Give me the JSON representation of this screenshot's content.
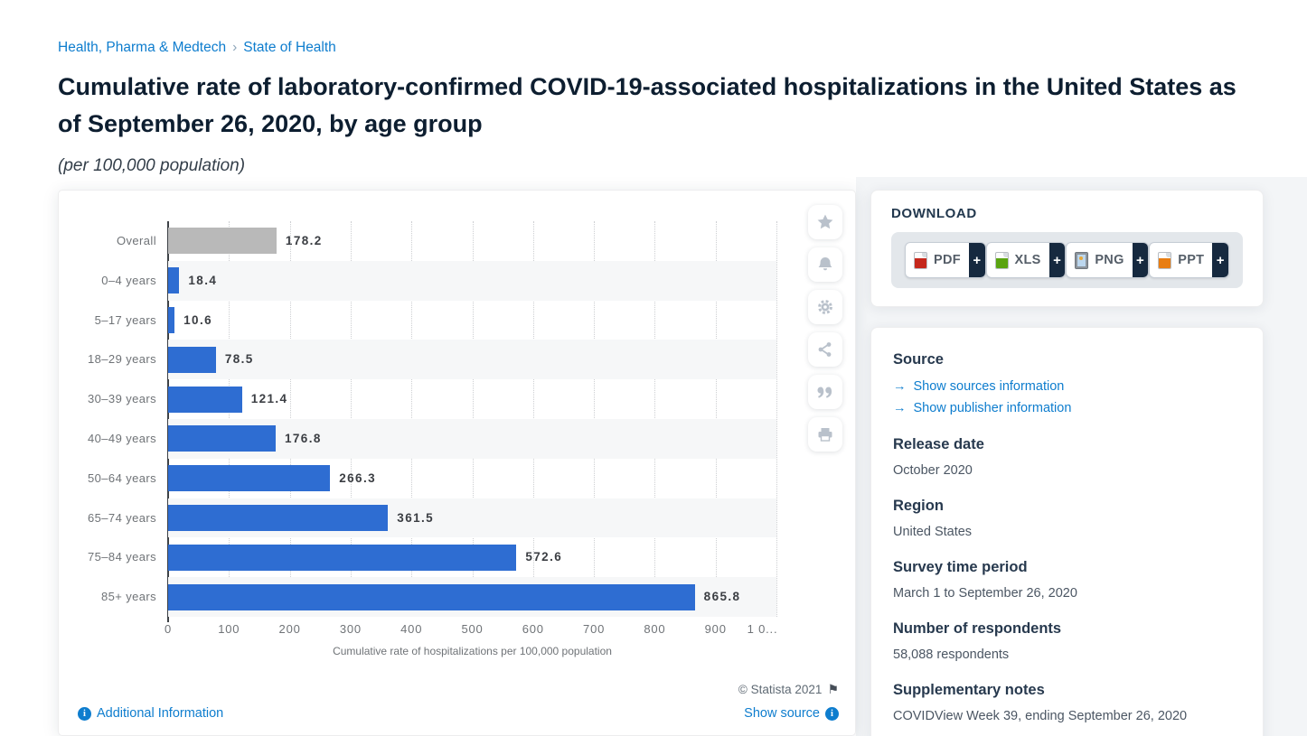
{
  "breadcrumb": {
    "items": [
      "Health, Pharma & Medtech",
      "State of Health"
    ],
    "separator": "›"
  },
  "page": {
    "title": "Cumulative rate of laboratory-confirmed COVID-19-associated hospitalizations in the United States as of September 26, 2020, by age group",
    "subtitle": "(per 100,000 population)"
  },
  "chart_data": {
    "type": "bar",
    "orientation": "horizontal",
    "categories": [
      "Overall",
      "0–4 years",
      "5–17 years",
      "18–29 years",
      "30–39 years",
      "40–49 years",
      "50–64 years",
      "65–74 years",
      "75–84 years",
      "85+ years"
    ],
    "values": [
      178.2,
      18.4,
      10.6,
      78.5,
      121.4,
      176.8,
      266.3,
      361.5,
      572.6,
      865.8
    ],
    "title": "Cumulative rate of laboratory-confirmed COVID-19-associated hospitalizations in the United States as of September 26, 2020, by age group",
    "xlabel": "Cumulative rate of hospitalizations per 100,000 population",
    "ylabel": "",
    "xlim": [
      0,
      1000
    ],
    "grid": "vertical-dotted",
    "bar_color_default": "#2e6dd2",
    "bar_color_overall": "#b9b9b9",
    "ticks": [
      {
        "label": "0",
        "value": 0
      },
      {
        "label": "100",
        "value": 100
      },
      {
        "label": "200",
        "value": 200
      },
      {
        "label": "300",
        "value": 300
      },
      {
        "label": "400",
        "value": 400
      },
      {
        "label": "500",
        "value": 500
      },
      {
        "label": "600",
        "value": 600
      },
      {
        "label": "700",
        "value": 700
      },
      {
        "label": "800",
        "value": 800
      },
      {
        "label": "900",
        "value": 900
      },
      {
        "label": "1 0...",
        "value": 977
      }
    ],
    "gridlines": [
      100,
      200,
      300,
      400,
      500,
      600,
      700,
      800,
      900,
      1000
    ]
  },
  "chart_footer": {
    "copyright": "© Statista 2021",
    "additional_info_label": "Additional Information",
    "show_source_label": "Show source",
    "info_icon": "i",
    "flag_icon": "⚑"
  },
  "action_icons": [
    "star-icon",
    "bell-icon",
    "gear-icon",
    "share-icon",
    "quote-icon",
    "print-icon"
  ],
  "download": {
    "heading": "DOWNLOAD",
    "plus_label": "+",
    "buttons": [
      {
        "label": "PDF",
        "type": "pdf"
      },
      {
        "label": "XLS",
        "type": "xls"
      },
      {
        "label": "PNG",
        "type": "png"
      },
      {
        "label": "PPT",
        "type": "ppt"
      }
    ]
  },
  "details": {
    "source_heading": "Source",
    "link_arrow": "→",
    "source_links": [
      "Show sources information",
      "Show publisher information"
    ],
    "sections": [
      {
        "heading": "Release date",
        "text": "October 2020"
      },
      {
        "heading": "Region",
        "text": "United States"
      },
      {
        "heading": "Survey time period",
        "text": "March 1 to September 26, 2020"
      },
      {
        "heading": "Number of respondents",
        "text": "58,088 respondents"
      },
      {
        "heading": "Supplementary notes",
        "text": "COVIDView Week 39, ending September 26, 2020"
      }
    ]
  },
  "colors": {
    "link_blue": "#0e7dce",
    "heading_navy": "#27394e",
    "title_navy": "#0d1e30",
    "band_gray": "#f6f7f8",
    "plus_navy": "#16293f"
  }
}
